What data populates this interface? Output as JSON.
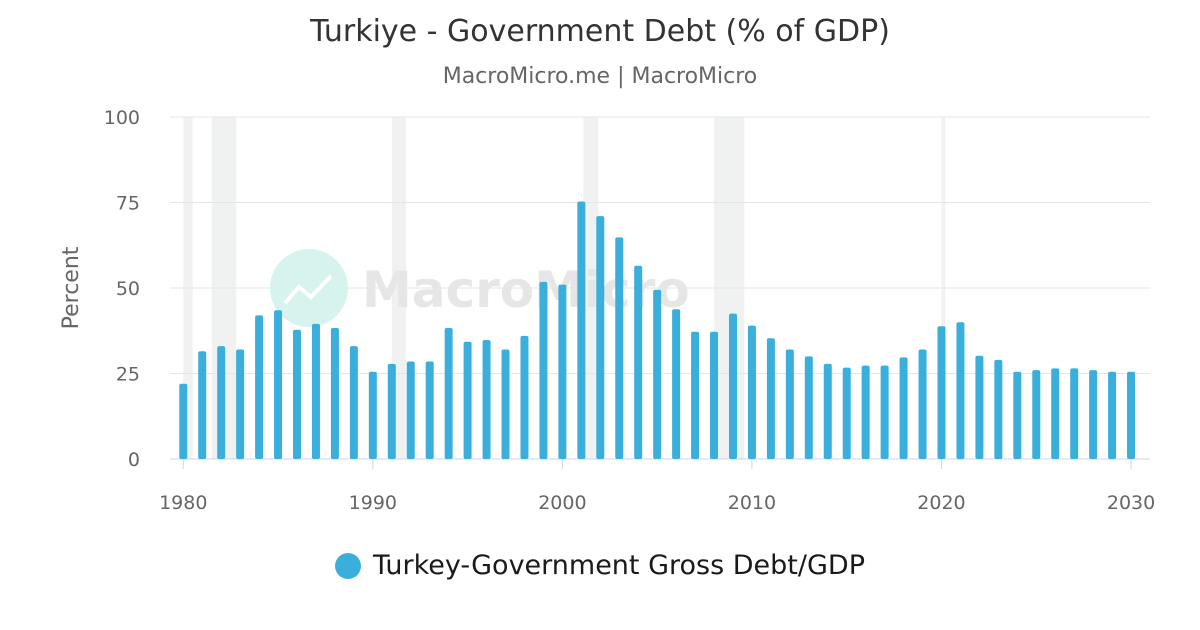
{
  "colors": {
    "bar": "#3aafdb",
    "grid": "#e6e6e6",
    "recession": "#f0f2f2",
    "text": "#666666",
    "watermark_circle": "#d6f3ee",
    "watermark_text": "#e6e6e6"
  },
  "watermark": {
    "text": "MacroMicro",
    "icon": "chart-trend-icon"
  },
  "chart_data": {
    "type": "bar",
    "title": "Turkiye - Government Debt (% of GDP)",
    "subtitle": "MacroMicro.me | MacroMicro",
    "xlabel": "",
    "ylabel": "Percent",
    "ylim": [
      0,
      100
    ],
    "yticks": [
      0,
      25,
      50,
      75,
      100
    ],
    "xlim": [
      1979.3,
      2031
    ],
    "xticks": [
      1980,
      1990,
      2000,
      2010,
      2020,
      2030
    ],
    "grid": true,
    "legend_position": "bottom",
    "recession_periods": [
      [
        1980.0,
        1980.5
      ],
      [
        1981.5,
        1982.8
      ],
      [
        1991.0,
        1991.75
      ],
      [
        2001.1,
        2001.9
      ],
      [
        2008.0,
        2009.6
      ],
      [
        2020.0,
        2020.2
      ]
    ],
    "series": [
      {
        "name": "Turkey-Government Gross Debt/GDP",
        "x": [
          1980,
          1981,
          1982,
          1983,
          1984,
          1985,
          1986,
          1987,
          1988,
          1989,
          1990,
          1991,
          1992,
          1993,
          1994,
          1995,
          1996,
          1997,
          1998,
          1999,
          2000,
          2001,
          2002,
          2003,
          2004,
          2005,
          2006,
          2007,
          2008,
          2009,
          2010,
          2011,
          2012,
          2013,
          2014,
          2015,
          2016,
          2017,
          2018,
          2019,
          2020,
          2021,
          2022,
          2023,
          2024,
          2025,
          2026,
          2027,
          2028,
          2029,
          2030
        ],
        "values": [
          22.0,
          31.5,
          33.0,
          32.0,
          42.0,
          43.5,
          37.8,
          39.5,
          38.3,
          33.0,
          25.5,
          27.8,
          28.5,
          28.5,
          38.3,
          34.3,
          34.8,
          32.0,
          36.0,
          51.8,
          51.0,
          75.3,
          71.0,
          64.8,
          56.5,
          49.5,
          43.8,
          37.2,
          37.2,
          42.5,
          39.0,
          35.3,
          32.0,
          30.0,
          27.8,
          26.7,
          27.3,
          27.3,
          29.7,
          32.0,
          38.8,
          40.0,
          30.2,
          29.0,
          25.5,
          26.0,
          26.5,
          26.5,
          26.0,
          25.5,
          25.5
        ]
      }
    ]
  }
}
